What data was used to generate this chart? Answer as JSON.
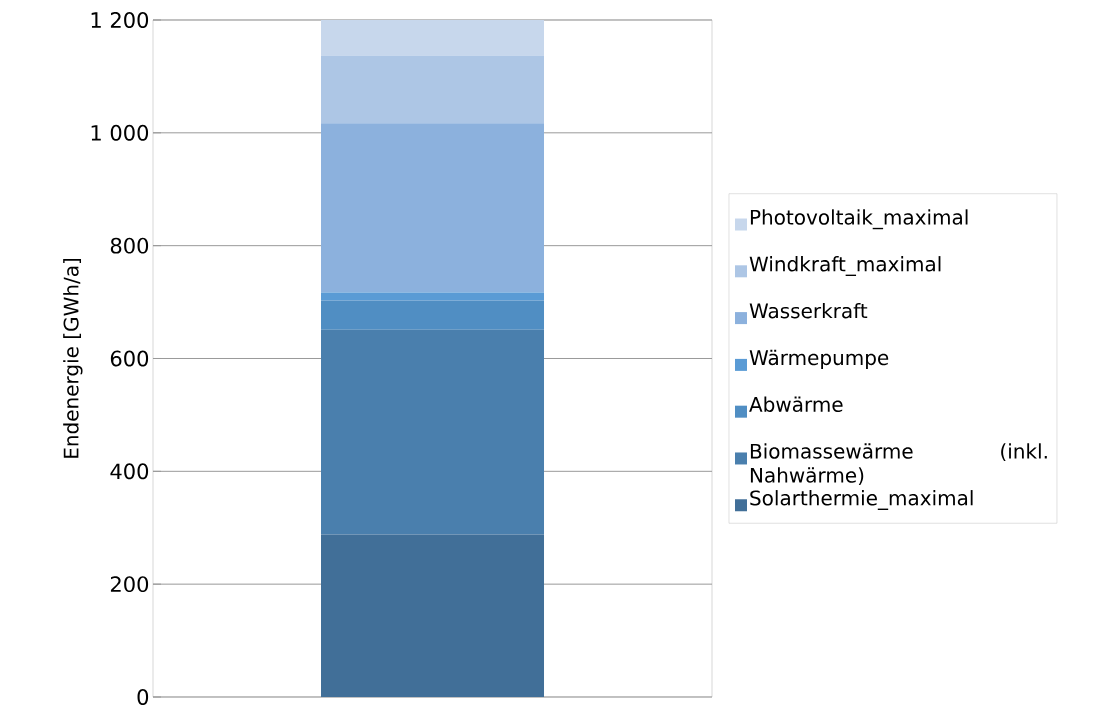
{
  "chart_data": {
    "type": "bar",
    "stacked": true,
    "ylabel": "Endenergie [GWh/a]",
    "categories": [
      null
    ],
    "series": [
      {
        "name": "Solarthermie_maximal",
        "color": "#416f98",
        "values": [
          288
        ]
      },
      {
        "name": "Biomassewärme (inkl. Nahwärme)",
        "color": "#4a7fad",
        "values": [
          363
        ]
      },
      {
        "name": "Abwärme",
        "color": "#508ec3",
        "values": [
          52
        ]
      },
      {
        "name": "Wärmepumpe",
        "color": "#5a9bd5",
        "values": [
          14
        ]
      },
      {
        "name": "Wasserkraft",
        "color": "#8cb1dd",
        "values": [
          300
        ]
      },
      {
        "name": "Windkraft_maximal",
        "color": "#adc6e5",
        "values": [
          120
        ]
      },
      {
        "name": "Photovoltaik_maximal",
        "color": "#c7d7ec",
        "values": [
          63
        ]
      }
    ],
    "ylim": [
      0,
      1200
    ],
    "yticks": [
      0,
      200,
      400,
      600,
      800,
      {
        "value": 1000,
        "label": "1 000"
      },
      {
        "value": 1200,
        "label": "1 200"
      }
    ],
    "grid": "y",
    "legend": "right",
    "tick_labels": "y"
  }
}
